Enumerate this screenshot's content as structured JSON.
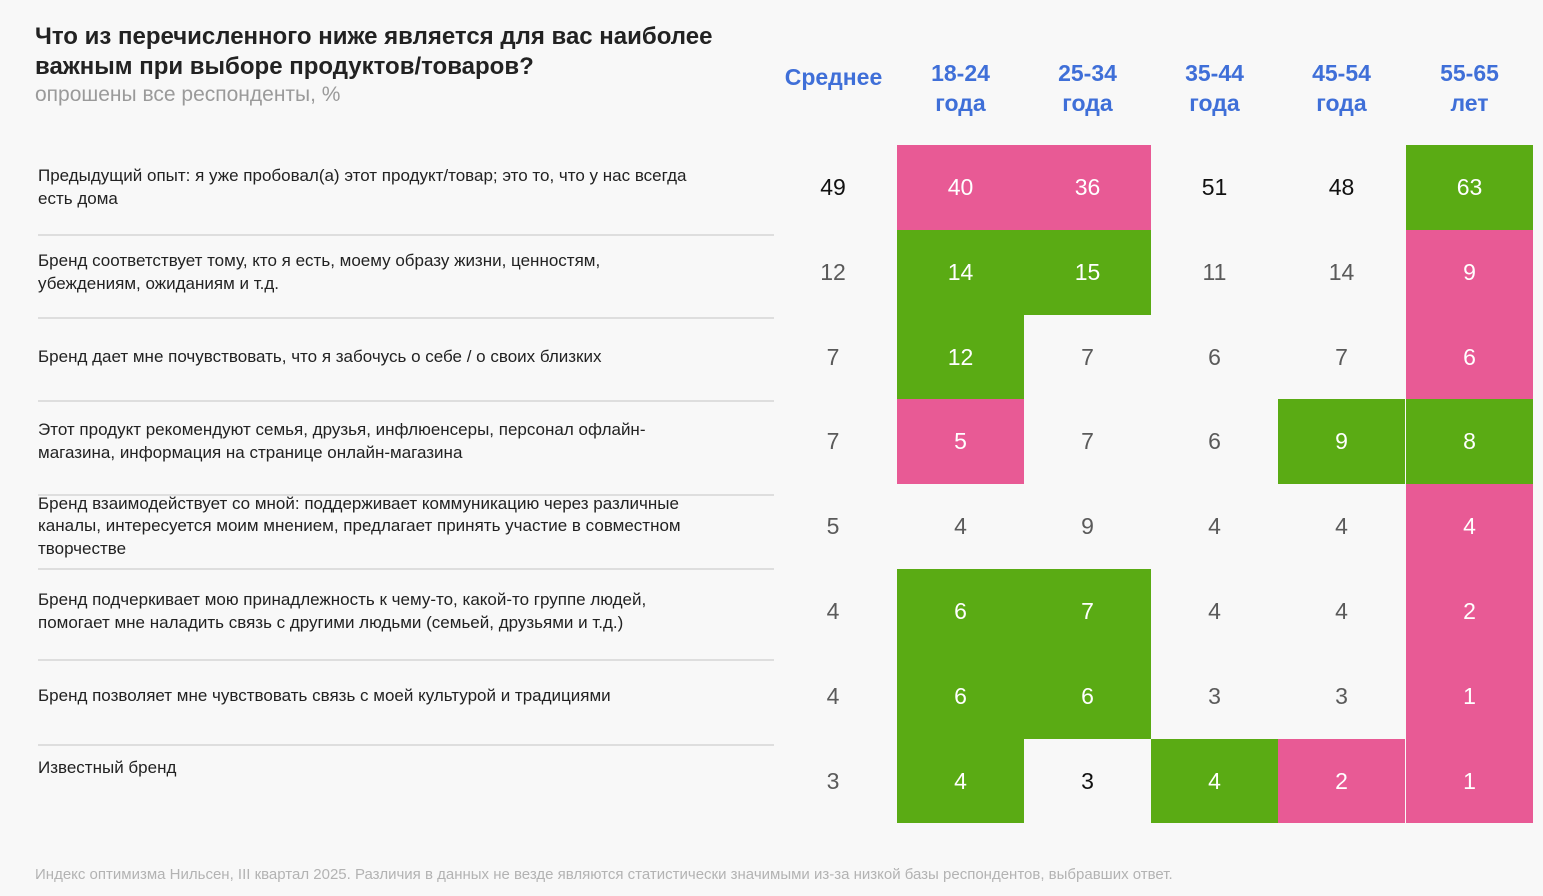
{
  "header": {
    "title_line1": "Что из перечисленного ниже является для вас наиболее",
    "title_line2": "важным при выборе продуктов/товаров?",
    "subtitle": "опрошены все респонденты, %"
  },
  "colors": {
    "accent": "#3f6fd8",
    "green": "#5aab14",
    "pink": "#e85a95",
    "text_on_color": "#ffffff",
    "gray_value": "#5a5a5a"
  },
  "chart_data": {
    "type": "table",
    "title": "Что из перечисленного ниже является для вас наиболее важным при выборе продуктов/товаров?",
    "subtitle": "опрошены все респонденты, %",
    "columns": [
      {
        "line1": "Среднее",
        "line2": ""
      },
      {
        "line1": "18-24",
        "line2": "года"
      },
      {
        "line1": "25-34",
        "line2": "года"
      },
      {
        "line1": "35-44",
        "line2": "года"
      },
      {
        "line1": "45-54",
        "line2": "года"
      },
      {
        "line1": "55-65",
        "line2": "лет"
      }
    ],
    "rows": [
      {
        "line1": "Предыдущий опыт: я уже пробовал(а) этот продукт/товар; это то, что у нас всегда",
        "line2": "есть дома",
        "line3": "",
        "values": [
          49,
          40,
          36,
          51,
          48,
          63
        ],
        "highlight": [
          "none",
          "pink",
          "pink",
          "none",
          "none",
          "green"
        ],
        "strong": [
          true,
          false,
          false,
          true,
          true,
          false
        ]
      },
      {
        "line1": "Бренд соответствует тому, кто я есть, моему образу жизни, ценностям,",
        "line2": "убеждениям, ожиданиям и т.д.",
        "line3": "",
        "values": [
          12,
          14,
          15,
          11,
          14,
          9
        ],
        "highlight": [
          "none",
          "green",
          "green",
          "none",
          "none",
          "pink"
        ],
        "strong": [
          false,
          false,
          false,
          false,
          false,
          false
        ]
      },
      {
        "line1": "Бренд дает мне почувствовать, что я забочусь о себе / о своих близких",
        "line2": "",
        "line3": "",
        "values": [
          7,
          12,
          7,
          6,
          7,
          6
        ],
        "highlight": [
          "none",
          "green",
          "none",
          "none",
          "none",
          "pink"
        ],
        "strong": [
          false,
          false,
          false,
          false,
          false,
          false
        ]
      },
      {
        "line1": "Этот продукт рекомендуют семья, друзья, инфлюенсеры, персонал офлайн-",
        "line2": "магазина, информация на странице онлайн-магазина",
        "line3": "",
        "values": [
          7,
          5,
          7,
          6,
          9,
          8
        ],
        "highlight": [
          "none",
          "pink",
          "none",
          "none",
          "green",
          "green"
        ],
        "strong": [
          false,
          false,
          false,
          false,
          false,
          false
        ]
      },
      {
        "line1": "Бренд взаимодействует со мной: поддерживает коммуникацию через различные",
        "line2": "каналы, интересуется моим мнением, предлагает принять участие в совместном",
        "line3": "творчестве",
        "values": [
          5,
          4,
          9,
          4,
          4,
          4
        ],
        "highlight": [
          "none",
          "none",
          "none",
          "none",
          "none",
          "pink"
        ],
        "strong": [
          false,
          false,
          false,
          false,
          false,
          false
        ]
      },
      {
        "line1": "Бренд подчеркивает мою принадлежность к чему-то, какой-то группе людей,",
        "line2": "помогает мне наладить связь с другими людьми (семьей, друзьями и т.д.)",
        "line3": "",
        "values": [
          4,
          6,
          7,
          4,
          4,
          2
        ],
        "highlight": [
          "none",
          "green",
          "green",
          "none",
          "none",
          "pink"
        ],
        "strong": [
          false,
          false,
          false,
          false,
          false,
          false
        ]
      },
      {
        "line1": "Бренд позволяет мне чувствовать связь с моей культурой и традициями",
        "line2": "",
        "line3": "",
        "values": [
          4,
          6,
          6,
          3,
          3,
          1
        ],
        "highlight": [
          "none",
          "green",
          "green",
          "none",
          "none",
          "pink"
        ],
        "strong": [
          false,
          false,
          false,
          false,
          false,
          false
        ]
      },
      {
        "line1": "Известный бренд",
        "line2": "",
        "line3": "",
        "values": [
          3,
          4,
          3,
          4,
          2,
          1
        ],
        "highlight": [
          "none",
          "green",
          "none",
          "green",
          "pink",
          "pink"
        ],
        "strong": [
          false,
          false,
          true,
          false,
          false,
          false
        ]
      }
    ]
  },
  "footnote": "Индекс оптимизма Нильсен, III квартал 2025. Различия в данных не везде являются статистически значимыми из-за низкой базы респондентов, выбравших ответ."
}
